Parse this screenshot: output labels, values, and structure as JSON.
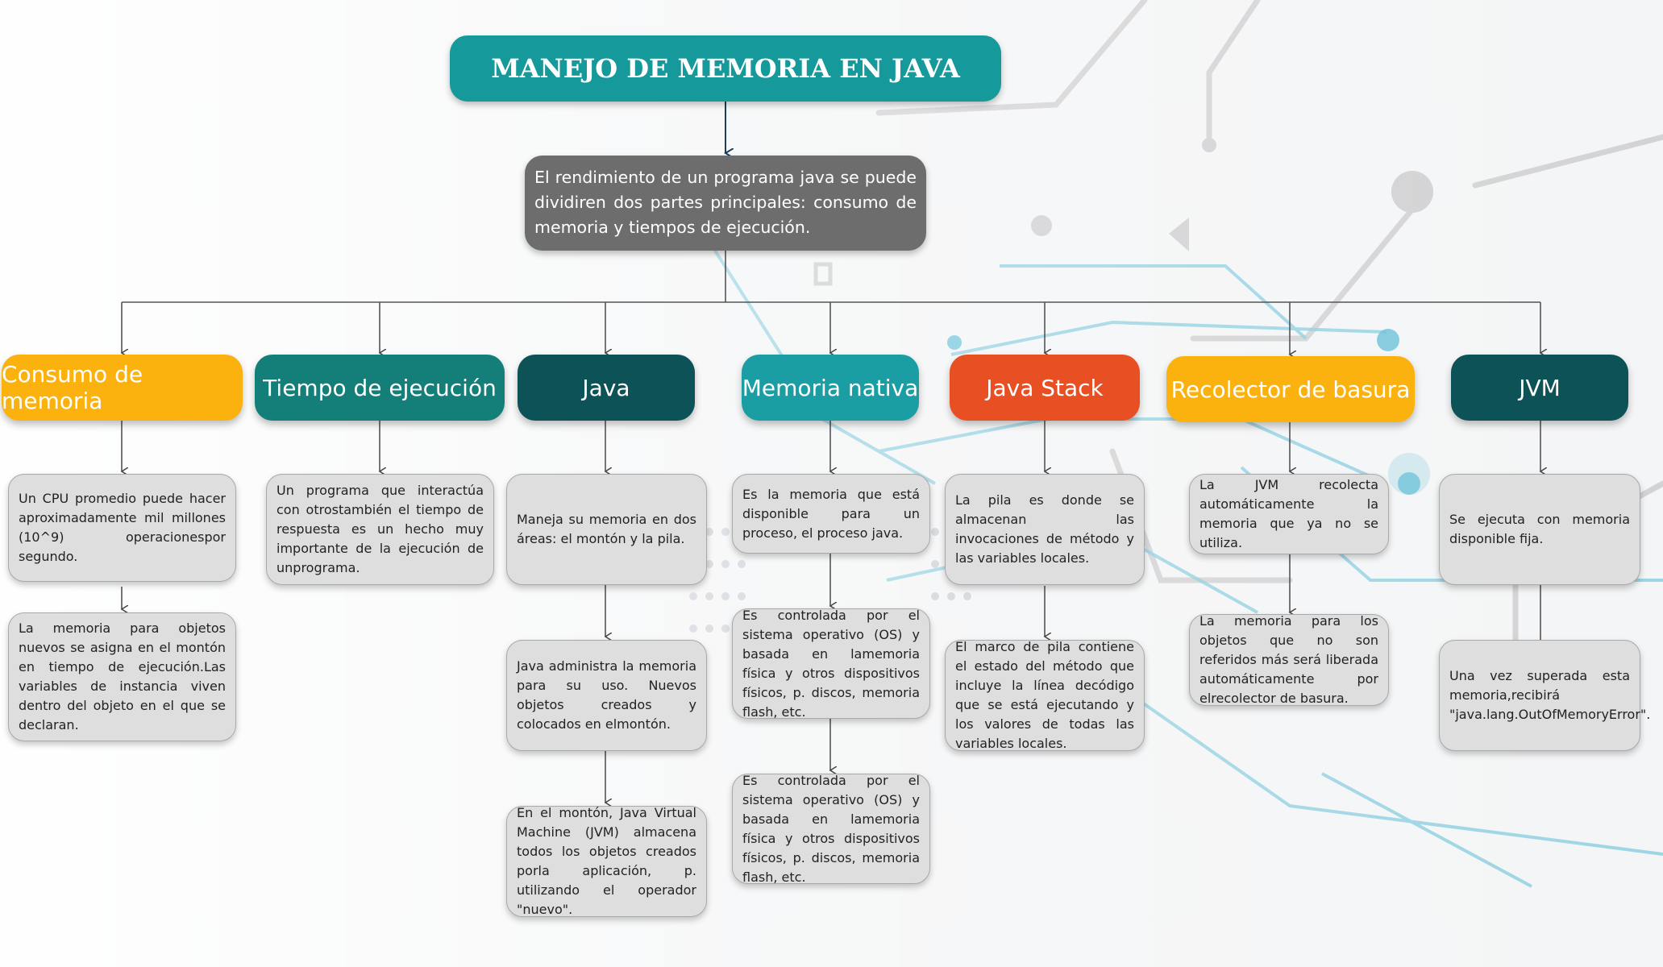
{
  "title": "MANEJO DE MEMORIA EN JAVA",
  "intro": "El rendimiento de un programa java se puede dividiren dos partes principales: consumo de memoria y tiempos de ejecución.",
  "colors": {
    "teal": "#16999b",
    "gray": "#6d6d6d",
    "yellow": "#fbb20f",
    "green": "#137f78",
    "dark_teal": "#0c5257",
    "mid_teal": "#1b9ea3",
    "orange": "#e84f23"
  },
  "categories": [
    {
      "label": "Consumo de memoria",
      "cards": [
        "Un CPU promedio puede hacer aproximadamente mil millones (10^9) operacionespor segundo.",
        "La memoria para objetos nuevos se asigna en el montón en tiempo de ejecución.Las variables de instancia viven dentro del objeto en el que se declaran."
      ]
    },
    {
      "label": "Tiempo de ejecución",
      "cards": [
        "Un programa que interactúa con otrostambién el tiempo de respuesta es un hecho muy importante de la ejecución de unprograma."
      ]
    },
    {
      "label": "Java",
      "cards": [
        "Maneja su memoria en dos áreas: el montón y la pila.",
        "Java administra la memoria para su uso. Nuevos objetos creados y colocados en elmontón.",
        "En el montón, Java Virtual Machine (JVM) almacena todos los objetos creados porla aplicación, p. utilizando el operador \"nuevo\"."
      ]
    },
    {
      "label": "Memoria nativa",
      "cards": [
        "Es la memoria que está disponible para un proceso, el proceso java.",
        "Es controlada por el sistema operativo (OS) y basada en lamemoria física y otros dispositivos físicos, p. discos, memoria flash, etc.",
        "Es controlada por el sistema operativo (OS) y basada en lamemoria física y otros dispositivos físicos, p. discos, memoria flash, etc."
      ]
    },
    {
      "label": "Java Stack",
      "cards": [
        "La pila es donde se almacenan las invocaciones de método y las variables locales.",
        "El marco de pila contiene el estado del método que incluye la línea decódigo que se está ejecutando y los valores de todas las variables locales."
      ]
    },
    {
      "label": "Recolector de basura",
      "cards": [
        "La JVM recolecta automáticamente la memoria que ya no se utiliza.",
        "La memoria para los objetos que no son referidos más será liberada automáticamente por elrecolector de basura."
      ]
    },
    {
      "label": "JVM",
      "cards": [
        "Se ejecuta con memoria disponible fija.",
        "Una vez superada esta memoria,recibirá \"java.lang.OutOfMemoryError\"."
      ]
    }
  ]
}
